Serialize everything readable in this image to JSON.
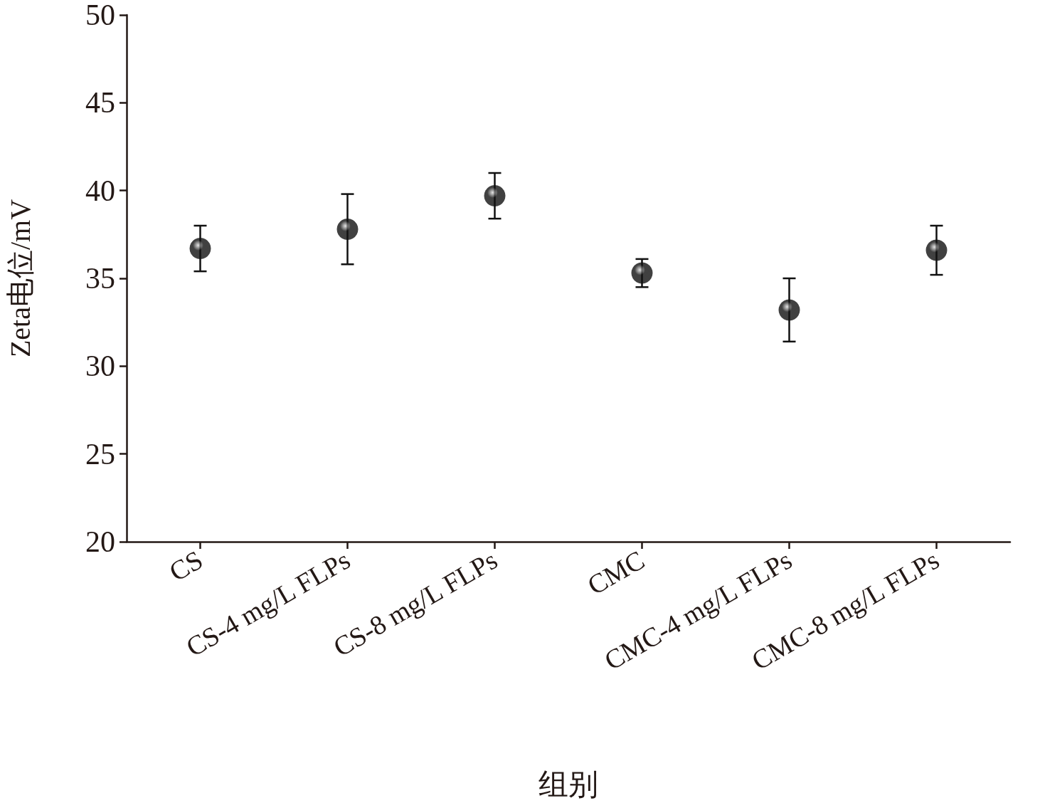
{
  "chart_data": {
    "type": "scatter",
    "xlabel": "组别",
    "ylabel": "Zeta电位/mV",
    "categories": [
      "CS",
      "CS-4 mg/L FLPs",
      "CS-8 mg/L FLPs",
      "CMC",
      "CMC-4 mg/L FLPs",
      "CMC-8 mg/L FLPs"
    ],
    "series": [
      {
        "color": "#111111",
        "values": [
          36.7,
          37.8,
          39.7,
          35.3,
          33.2,
          36.6
        ],
        "errors": [
          1.3,
          2.0,
          1.3,
          0.8,
          1.8,
          1.4
        ]
      }
    ],
    "ylim": [
      20,
      50
    ],
    "yticks": [
      20,
      25,
      30,
      35,
      40,
      45,
      50
    ],
    "grid": false,
    "marker": "circle"
  }
}
